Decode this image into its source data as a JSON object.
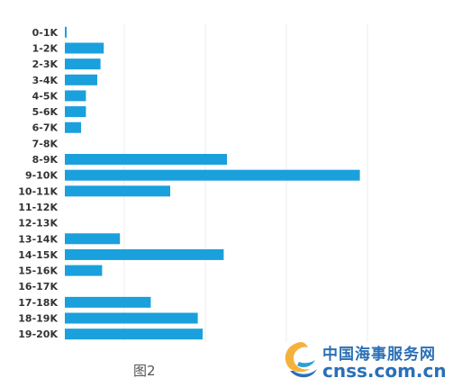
{
  "chart_data": {
    "type": "bar",
    "orientation": "horizontal",
    "categories": [
      "0-1K",
      "1-2K",
      "2-3K",
      "3-4K",
      "4-5K",
      "5-6K",
      "6-7K",
      "7-8K",
      "8-9K",
      "9-10K",
      "10-11K",
      "11-12K",
      "12-13K",
      "13-14K",
      "14-15K",
      "15-16K",
      "16-17K",
      "17-18K",
      "18-19K",
      "19-20K"
    ],
    "values": [
      1,
      24,
      22,
      20,
      13,
      13,
      10,
      0,
      100,
      182,
      65,
      0,
      0,
      34,
      98,
      23,
      0,
      53,
      82,
      85
    ],
    "xlim": [
      0,
      200
    ],
    "grid": true,
    "bar_color": "#1aa0dc",
    "title": "",
    "xlabel": "",
    "ylabel": ""
  },
  "caption": "图2",
  "watermark": {
    "name": "中国海事服务网",
    "url": "cnss.com.cn"
  }
}
